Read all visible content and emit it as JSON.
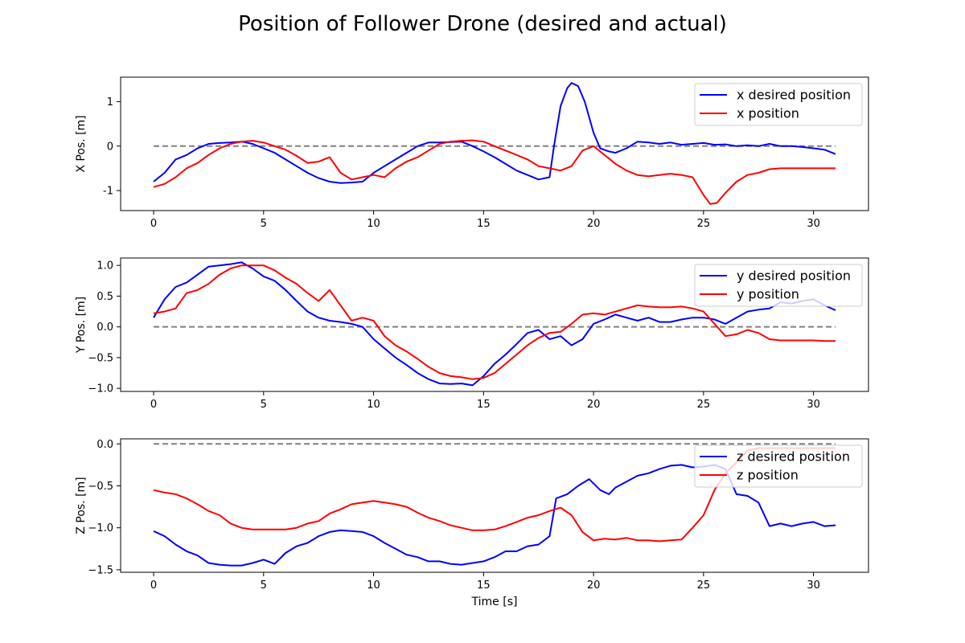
{
  "figure": {
    "title": "Position of Follower Drone (desired and actual)"
  },
  "colors": {
    "desired": "#0000ff",
    "actual": "#ff0000",
    "reference": "#808080",
    "legend_border": "#cccccc"
  },
  "chart_data": [
    {
      "type": "line",
      "ylabel": "X Pos. [m]",
      "xlabel": "",
      "xlim": [
        -1.5,
        32.5
      ],
      "ylim": [
        -1.45,
        1.55
      ],
      "xticks": [
        0,
        5,
        10,
        15,
        20,
        25,
        30
      ],
      "yticks": [
        -1,
        0,
        1
      ],
      "legend_position": "top-right",
      "reference_line": {
        "y": 0,
        "x": [
          0,
          31
        ],
        "style": "dashed"
      },
      "series": [
        {
          "name": "x desired position",
          "color_key": "desired",
          "x": [
            0,
            0.5,
            1,
            1.5,
            2,
            2.5,
            3,
            3.5,
            4,
            4.5,
            5,
            5.5,
            6,
            6.5,
            7,
            7.5,
            8,
            8.5,
            9,
            9.5,
            10,
            10.5,
            11,
            11.5,
            12,
            12.5,
            13,
            13.5,
            14,
            14.5,
            15,
            15.5,
            16,
            16.5,
            17,
            17.5,
            18,
            18.2,
            18.5,
            18.8,
            19,
            19.3,
            19.6,
            20,
            20.3,
            20.7,
            21,
            21.5,
            22,
            22.5,
            23,
            23.5,
            24,
            24.5,
            25,
            25.5,
            26,
            26.5,
            27,
            27.5,
            28,
            28.5,
            29,
            29.5,
            30,
            30.5,
            31
          ],
          "y": [
            -0.8,
            -0.6,
            -0.3,
            -0.2,
            -0.05,
            0.05,
            0.07,
            0.08,
            0.1,
            0.05,
            -0.05,
            -0.15,
            -0.3,
            -0.45,
            -0.6,
            -0.72,
            -0.8,
            -0.83,
            -0.82,
            -0.8,
            -0.6,
            -0.45,
            -0.3,
            -0.15,
            0.0,
            0.08,
            0.08,
            0.09,
            0.1,
            0.0,
            -0.12,
            -0.25,
            -0.4,
            -0.55,
            -0.65,
            -0.75,
            -0.7,
            0.0,
            0.9,
            1.3,
            1.42,
            1.35,
            1.0,
            0.3,
            -0.05,
            -0.12,
            -0.15,
            -0.05,
            0.1,
            0.08,
            0.05,
            0.08,
            0.03,
            0.05,
            0.07,
            0.03,
            0.04,
            0.0,
            0.02,
            0.0,
            0.05,
            0.0,
            0.0,
            -0.02,
            -0.05,
            -0.08,
            -0.18
          ]
        },
        {
          "name": "x position",
          "color_key": "actual",
          "x": [
            0,
            0.5,
            1,
            1.5,
            2,
            2.5,
            3,
            3.5,
            4,
            4.5,
            5,
            5.5,
            6,
            6.5,
            7,
            7.5,
            8,
            8.5,
            9,
            9.5,
            10,
            10.5,
            11,
            11.5,
            12,
            12.5,
            13,
            13.5,
            14,
            14.5,
            15,
            15.5,
            16,
            16.5,
            17,
            17.5,
            18,
            18.5,
            19,
            19.5,
            20,
            20.5,
            21,
            21.5,
            22,
            22.5,
            23,
            23.5,
            24,
            24.5,
            25,
            25.3,
            25.6,
            26,
            26.5,
            27,
            27.5,
            28,
            28.5,
            29,
            29.5,
            30,
            30.5,
            31
          ],
          "y": [
            -0.92,
            -0.85,
            -0.7,
            -0.5,
            -0.38,
            -0.2,
            -0.05,
            0.05,
            0.1,
            0.12,
            0.08,
            0.0,
            -0.08,
            -0.22,
            -0.38,
            -0.35,
            -0.25,
            -0.6,
            -0.75,
            -0.7,
            -0.65,
            -0.7,
            -0.5,
            -0.35,
            -0.25,
            -0.1,
            0.05,
            0.1,
            0.12,
            0.13,
            0.1,
            0.0,
            -0.1,
            -0.2,
            -0.3,
            -0.45,
            -0.5,
            -0.55,
            -0.45,
            -0.1,
            0.0,
            -0.2,
            -0.4,
            -0.55,
            -0.65,
            -0.68,
            -0.65,
            -0.62,
            -0.65,
            -0.7,
            -1.1,
            -1.3,
            -1.28,
            -1.05,
            -0.8,
            -0.65,
            -0.6,
            -0.52,
            -0.5,
            -0.5,
            -0.5,
            -0.5,
            -0.5,
            -0.5
          ]
        }
      ]
    },
    {
      "type": "line",
      "ylabel": "Y Pos. [m]",
      "xlabel": "",
      "xlim": [
        -1.5,
        32.5
      ],
      "ylim": [
        -1.05,
        1.12
      ],
      "xticks": [
        0,
        5,
        10,
        15,
        20,
        25,
        30
      ],
      "yticks": [
        -1.0,
        -0.5,
        0.0,
        0.5,
        1.0
      ],
      "ytick_labels": [
        "−1.0",
        "−0.5",
        "0.0",
        "0.5",
        "1.0"
      ],
      "legend_position": "top-right",
      "reference_line": {
        "y": 0,
        "x": [
          0,
          31
        ],
        "style": "dashed"
      },
      "series": [
        {
          "name": "y desired position",
          "color_key": "desired",
          "x": [
            0,
            0.5,
            1,
            1.5,
            2,
            2.5,
            3,
            3.5,
            4,
            4.5,
            5,
            5.5,
            6,
            6.5,
            7,
            7.5,
            8,
            8.5,
            9,
            9.5,
            10,
            10.5,
            11,
            11.5,
            12,
            12.5,
            13,
            13.5,
            14,
            14.5,
            15,
            15.5,
            16,
            16.5,
            17,
            17.5,
            18,
            18.5,
            19,
            19.5,
            20,
            20.5,
            21,
            21.5,
            22,
            22.5,
            23,
            23.5,
            24,
            24.5,
            25,
            25.5,
            26,
            26.5,
            27,
            27.5,
            28,
            28.5,
            29,
            29.5,
            30,
            30.5,
            31
          ],
          "y": [
            0.15,
            0.45,
            0.65,
            0.72,
            0.85,
            0.98,
            1.0,
            1.02,
            1.05,
            0.95,
            0.82,
            0.75,
            0.6,
            0.42,
            0.25,
            0.15,
            0.1,
            0.08,
            0.05,
            0.0,
            -0.2,
            -0.35,
            -0.5,
            -0.62,
            -0.75,
            -0.85,
            -0.92,
            -0.93,
            -0.92,
            -0.95,
            -0.8,
            -0.6,
            -0.45,
            -0.28,
            -0.1,
            -0.05,
            -0.2,
            -0.15,
            -0.3,
            -0.2,
            0.05,
            0.12,
            0.2,
            0.15,
            0.1,
            0.15,
            0.08,
            0.08,
            0.12,
            0.15,
            0.15,
            0.12,
            0.05,
            0.15,
            0.25,
            0.28,
            0.3,
            0.4,
            0.38,
            0.42,
            0.45,
            0.35,
            0.27
          ]
        },
        {
          "name": "y position",
          "color_key": "actual",
          "x": [
            0,
            0.5,
            1,
            1.5,
            2,
            2.5,
            3,
            3.5,
            4,
            4.5,
            5,
            5.5,
            6,
            6.5,
            7,
            7.5,
            8,
            8.5,
            9,
            9.5,
            10,
            10.5,
            11,
            11.5,
            12,
            12.5,
            13,
            13.5,
            14,
            14.5,
            15,
            15.5,
            16,
            16.5,
            17,
            17.5,
            18,
            18.5,
            19,
            19.5,
            20,
            20.5,
            21,
            21.5,
            22,
            22.5,
            23,
            23.5,
            24,
            24.5,
            25,
            25.5,
            26,
            26.5,
            27,
            27.5,
            28,
            28.5,
            29,
            29.5,
            30,
            30.5,
            31
          ],
          "y": [
            0.22,
            0.25,
            0.3,
            0.55,
            0.6,
            0.7,
            0.85,
            0.95,
            1.0,
            1.0,
            1.0,
            0.92,
            0.8,
            0.7,
            0.55,
            0.42,
            0.6,
            0.35,
            0.1,
            0.15,
            0.1,
            -0.15,
            -0.3,
            -0.4,
            -0.52,
            -0.65,
            -0.75,
            -0.8,
            -0.82,
            -0.85,
            -0.83,
            -0.75,
            -0.6,
            -0.45,
            -0.3,
            -0.18,
            -0.1,
            -0.08,
            0.05,
            0.2,
            0.22,
            0.2,
            0.25,
            0.3,
            0.35,
            0.33,
            0.32,
            0.32,
            0.33,
            0.3,
            0.25,
            0.05,
            -0.15,
            -0.12,
            -0.05,
            -0.1,
            -0.2,
            -0.22,
            -0.22,
            -0.22,
            -0.22,
            -0.23,
            -0.23
          ]
        }
      ]
    },
    {
      "type": "line",
      "ylabel": "Z Pos. [m]",
      "xlabel": "Time [s]",
      "xlim": [
        -1.5,
        32.5
      ],
      "ylim": [
        -1.53,
        0.06
      ],
      "xticks": [
        0,
        5,
        10,
        15,
        20,
        25,
        30
      ],
      "yticks": [
        -1.5,
        -1.0,
        -0.5,
        0.0
      ],
      "ytick_labels": [
        "−1.5",
        "−1.0",
        "−0.5",
        "0.0"
      ],
      "legend_position": "top-right",
      "reference_line": {
        "y": 0,
        "x": [
          0,
          31
        ],
        "style": "dashed"
      },
      "series": [
        {
          "name": "z desired position",
          "color_key": "desired",
          "x": [
            0,
            0.5,
            1,
            1.5,
            2,
            2.5,
            3,
            3.5,
            4,
            4.5,
            5,
            5.5,
            6,
            6.5,
            7,
            7.5,
            8,
            8.5,
            9,
            9.5,
            10,
            10.5,
            11,
            11.5,
            12,
            12.5,
            13,
            13.5,
            14,
            14.5,
            15,
            15.5,
            16,
            16.5,
            17,
            17.5,
            18,
            18.3,
            18.8,
            19.3,
            19.8,
            20.3,
            20.7,
            21,
            21.5,
            22,
            22.5,
            23,
            23.5,
            24,
            24.5,
            25,
            25.5,
            26,
            26.5,
            27,
            27.5,
            28,
            28.5,
            29,
            29.5,
            30,
            30.5,
            31
          ],
          "y": [
            -1.04,
            -1.1,
            -1.2,
            -1.28,
            -1.33,
            -1.42,
            -1.44,
            -1.45,
            -1.45,
            -1.42,
            -1.38,
            -1.43,
            -1.3,
            -1.22,
            -1.18,
            -1.1,
            -1.05,
            -1.03,
            -1.04,
            -1.05,
            -1.1,
            -1.18,
            -1.25,
            -1.32,
            -1.35,
            -1.4,
            -1.4,
            -1.43,
            -1.44,
            -1.42,
            -1.4,
            -1.35,
            -1.28,
            -1.28,
            -1.22,
            -1.2,
            -1.1,
            -0.65,
            -0.6,
            -0.5,
            -0.42,
            -0.55,
            -0.6,
            -0.52,
            -0.45,
            -0.38,
            -0.35,
            -0.3,
            -0.26,
            -0.25,
            -0.28,
            -0.27,
            -0.25,
            -0.3,
            -0.6,
            -0.62,
            -0.7,
            -0.98,
            -0.95,
            -0.98,
            -0.95,
            -0.93,
            -0.98,
            -0.97
          ]
        },
        {
          "name": "z position",
          "color_key": "actual",
          "x": [
            0,
            0.5,
            1,
            1.5,
            2,
            2.5,
            3,
            3.5,
            4,
            4.5,
            5,
            5.5,
            6,
            6.5,
            7,
            7.5,
            8,
            8.5,
            9,
            9.5,
            10,
            10.5,
            11,
            11.5,
            12,
            12.5,
            13,
            13.5,
            14,
            14.5,
            15,
            15.5,
            16,
            16.5,
            17,
            17.5,
            18,
            18.5,
            19,
            19.5,
            20,
            20.5,
            21,
            21.5,
            22,
            22.5,
            23,
            23.5,
            24,
            24.5,
            25,
            25.5,
            26,
            26.5,
            27,
            27.5,
            28,
            28.5,
            29,
            29.5,
            30,
            30.5,
            31
          ],
          "y": [
            -0.55,
            -0.58,
            -0.6,
            -0.65,
            -0.72,
            -0.8,
            -0.85,
            -0.95,
            -1.0,
            -1.02,
            -1.02,
            -1.02,
            -1.02,
            -1.0,
            -0.95,
            -0.92,
            -0.83,
            -0.78,
            -0.72,
            -0.7,
            -0.68,
            -0.7,
            -0.72,
            -0.75,
            -0.82,
            -0.88,
            -0.92,
            -0.97,
            -1.0,
            -1.03,
            -1.03,
            -1.02,
            -0.98,
            -0.93,
            -0.88,
            -0.85,
            -0.8,
            -0.76,
            -0.85,
            -1.05,
            -1.15,
            -1.13,
            -1.14,
            -1.12,
            -1.15,
            -1.15,
            -1.16,
            -1.15,
            -1.14,
            -1.0,
            -0.85,
            -0.55,
            -0.35,
            -0.22,
            -0.08,
            -0.05,
            -0.05,
            -0.05,
            -0.05,
            -0.05,
            -0.05,
            -0.05,
            -0.05
          ]
        }
      ]
    }
  ]
}
